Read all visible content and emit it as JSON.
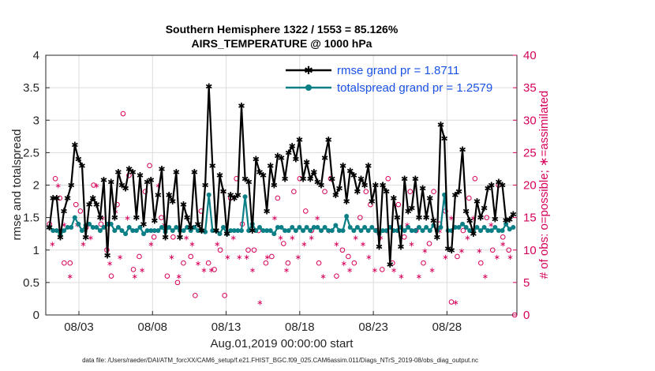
{
  "colors": {
    "rmse": "#000000",
    "spread": "#0b7f86",
    "obs": "#d6005a",
    "legend_text": "#1a52e6",
    "grid": "#dcdcdc"
  },
  "chart_data": {
    "type": "line",
    "title": "Southern Hemisphere 1322 / 1553 = 85.126%",
    "subtitle": "AIRS_TEMPERATURE @ 1000 hPa",
    "xlabel": "Aug.01,2019 00:00:00 start",
    "ylabel": "rmse and totalspread",
    "ylabel_right": "# of obs: o=possible; ∗=assimilated",
    "x_ticks": [
      "08/03",
      "08/08",
      "08/13",
      "08/18",
      "08/23",
      "08/28"
    ],
    "x_tick_days": [
      2.5,
      7.5,
      12.5,
      17.5,
      22.5,
      27.5
    ],
    "xlim": [
      0.25,
      32.25
    ],
    "ylim": [
      0,
      4
    ],
    "y_ticks": [
      "0",
      "0.5",
      "1",
      "1.5",
      "2",
      "2.5",
      "3",
      "3.5",
      "4"
    ],
    "ylim_right": [
      0,
      40
    ],
    "y_ticks_right": [
      "0",
      "5",
      "10",
      "15",
      "20",
      "25",
      "30",
      "35",
      "40"
    ],
    "grid": true,
    "legend_position": "top-right",
    "legend": [
      "rmse grand pr = 1.8711",
      "totalspread grand pr = 1.2579"
    ],
    "series": [
      {
        "name": "rmse",
        "values": [
          1.35,
          1.8,
          1.8,
          1.2,
          1.6,
          1.8,
          2.0,
          2.62,
          2.4,
          2.3,
          1.2,
          1.7,
          1.8,
          1.7,
          1.5,
          2.08,
          0.92,
          2.05,
          1.5,
          2.2,
          2.0,
          1.95,
          2.25,
          2.2,
          1.5,
          2.15,
          1.4,
          2.05,
          2.08,
          1.45,
          1.85,
          2.25,
          1.2,
          1.85,
          1.75,
          2.2,
          1.2,
          1.7,
          1.5,
          1.35,
          2.2,
          1.4,
          1.3,
          2.0,
          3.52,
          2.3,
          1.3,
          2.15,
          1.9,
          1.25,
          1.85,
          1.8,
          1.85,
          3.22,
          2.1,
          2.05,
          1.3,
          2.4,
          2.2,
          2.15,
          1.6,
          2.3,
          2.0,
          2.45,
          2.42,
          2.1,
          2.5,
          2.6,
          2.4,
          2.7,
          2.1,
          2.35,
          2.1,
          2.2,
          2.05,
          2.0,
          2.42,
          2.7,
          2.1,
          1.85,
          1.95,
          2.3,
          1.75,
          2.22,
          2.15,
          1.9,
          2.1,
          2.0,
          2.3,
          1.75,
          2.0,
          1.05,
          2.0,
          1.9,
          0.78,
          1.8,
          1.5,
          1.05,
          2.1,
          1.6,
          1.65,
          2.1,
          1.5,
          1.95,
          1.5,
          1.8,
          1.45,
          1.2,
          2.93,
          2.72,
          1.02,
          1.0,
          1.85,
          1.9,
          2.55,
          1.6,
          1.45,
          1.25,
          1.75,
          1.5,
          1.65,
          1.95,
          2.0,
          1.48,
          2.05,
          2.0,
          1.46,
          1.47,
          1.55
        ],
        "color": "#000000"
      },
      {
        "name": "totalspread",
        "values": [
          1.35,
          1.3,
          1.3,
          1.25,
          1.3,
          1.35,
          1.35,
          1.5,
          1.4,
          1.3,
          1.38,
          1.4,
          1.35,
          1.35,
          1.3,
          1.35,
          1.4,
          1.4,
          1.3,
          1.35,
          1.3,
          1.25,
          1.35,
          1.3,
          1.3,
          1.35,
          1.25,
          1.3,
          1.3,
          1.3,
          1.3,
          1.35,
          1.28,
          1.35,
          1.3,
          1.35,
          1.3,
          1.3,
          1.35,
          1.3,
          1.35,
          1.3,
          1.3,
          1.28,
          1.45,
          1.3,
          1.3,
          1.25,
          1.35,
          1.25,
          1.3,
          1.3,
          1.3,
          1.3,
          1.35,
          1.3,
          1.4,
          1.3,
          1.35,
          1.3,
          1.3,
          1.3,
          1.25,
          1.35,
          1.35,
          1.3,
          1.3,
          1.35,
          1.3,
          1.35,
          1.3,
          1.35,
          1.3,
          1.35,
          1.35,
          1.3,
          1.35,
          1.3,
          1.3,
          1.38,
          1.3,
          1.3,
          1.3,
          1.35,
          1.3,
          1.35,
          1.3,
          1.35,
          1.3,
          1.35,
          1.3,
          1.25,
          1.3,
          1.3,
          1.35,
          1.3,
          1.3,
          1.35,
          1.3,
          1.35,
          1.3,
          1.3,
          1.35,
          1.3,
          1.35,
          1.3,
          1.38,
          1.3,
          1.35,
          1.4,
          1.3,
          1.3,
          1.35,
          1.35,
          1.4,
          1.35,
          1.3,
          1.3,
          1.35,
          1.3,
          1.35,
          1.3,
          1.3,
          1.35,
          1.3,
          1.3,
          1.4,
          1.32,
          1.35
        ],
        "spikes": [
          {
            "index": 44,
            "value": 1.85
          },
          {
            "index": 54,
            "value": 1.82
          },
          {
            "index": 82,
            "value": 1.52
          },
          {
            "index": 109,
            "value": 1.85
          }
        ],
        "color": "#0b7f86"
      },
      {
        "name": "obs possible",
        "axis": "right",
        "marker": "o",
        "points": [
          [
            0.5,
            14
          ],
          [
            0.9,
            21
          ],
          [
            1.2,
            18
          ],
          [
            1.5,
            8
          ],
          [
            1.9,
            8
          ],
          [
            2.3,
            17
          ],
          [
            2.6,
            16
          ],
          [
            3.0,
            13.5
          ],
          [
            3.5,
            20
          ],
          [
            4.0,
            14
          ],
          [
            4.4,
            10
          ],
          [
            4.7,
            6
          ],
          [
            5.1,
            17
          ],
          [
            5.5,
            31
          ],
          [
            5.9,
            21.5
          ],
          [
            6.2,
            7
          ],
          [
            6.6,
            9
          ],
          [
            7.0,
            19
          ],
          [
            7.3,
            23
          ],
          [
            7.6,
            12
          ],
          [
            8.1,
            15
          ],
          [
            8.5,
            6
          ],
          [
            8.9,
            12
          ],
          [
            9.2,
            5
          ],
          [
            9.6,
            8
          ],
          [
            10.1,
            9
          ],
          [
            10.4,
            3
          ],
          [
            10.8,
            16
          ],
          [
            11.3,
            8
          ],
          [
            11.7,
            7
          ],
          [
            12.1,
            10
          ],
          [
            12.4,
            3
          ],
          [
            12.8,
            18
          ],
          [
            13.2,
            21
          ],
          [
            13.6,
            14
          ],
          [
            14.0,
            10
          ],
          [
            14.4,
            10
          ],
          [
            14.7,
            13
          ],
          [
            15.2,
            8
          ],
          [
            15.6,
            9
          ],
          [
            16.0,
            18
          ],
          [
            16.4,
            11
          ],
          [
            16.7,
            8
          ],
          [
            17.1,
            19
          ],
          [
            17.5,
            21
          ],
          [
            17.9,
            16
          ],
          [
            18.3,
            13
          ],
          [
            18.8,
            8
          ],
          [
            19.2,
            19
          ],
          [
            19.6,
            21
          ],
          [
            20.0,
            6
          ],
          [
            20.4,
            10
          ],
          [
            20.8,
            9
          ],
          [
            21.2,
            8
          ],
          [
            21.6,
            15
          ],
          [
            22.0,
            19
          ],
          [
            22.3,
            17
          ],
          [
            22.7,
            13
          ],
          [
            23.1,
            7
          ],
          [
            23.5,
            21
          ],
          [
            23.8,
            8
          ],
          [
            24.2,
            17
          ],
          [
            24.6,
            12
          ],
          [
            25.0,
            19
          ],
          [
            25.4,
            13
          ],
          [
            25.9,
            8
          ],
          [
            26.3,
            11
          ],
          [
            26.6,
            19
          ],
          [
            27.0,
            14
          ],
          [
            27.4,
            16
          ],
          [
            27.8,
            2
          ],
          [
            28.2,
            9
          ],
          [
            28.6,
            13
          ],
          [
            29.0,
            18
          ],
          [
            29.4,
            21
          ],
          [
            29.8,
            8
          ],
          [
            30.2,
            15
          ],
          [
            30.6,
            10
          ],
          [
            31.0,
            20
          ],
          [
            31.3,
            12
          ],
          [
            31.7,
            10
          ],
          [
            32.1,
            0
          ]
        ]
      },
      {
        "name": "obs assimilated",
        "axis": "right",
        "marker": "*",
        "points": [
          [
            0.7,
            11
          ],
          [
            1.1,
            20
          ],
          [
            1.5,
            14
          ],
          [
            1.9,
            6
          ],
          [
            2.4,
            14
          ],
          [
            2.8,
            11
          ],
          [
            3.3,
            12
          ],
          [
            3.7,
            20
          ],
          [
            4.1,
            15
          ],
          [
            4.6,
            8
          ],
          [
            5.0,
            16
          ],
          [
            5.3,
            9
          ],
          [
            5.8,
            15
          ],
          [
            6.3,
            6
          ],
          [
            6.8,
            7
          ],
          [
            7.4,
            11
          ],
          [
            7.9,
            20
          ],
          [
            8.3,
            14
          ],
          [
            8.8,
            9
          ],
          [
            9.3,
            6
          ],
          [
            9.8,
            12
          ],
          [
            10.2,
            11
          ],
          [
            10.6,
            8
          ],
          [
            11.0,
            7
          ],
          [
            11.5,
            7
          ],
          [
            11.9,
            11
          ],
          [
            12.3,
            19
          ],
          [
            12.6,
            9
          ],
          [
            13.0,
            12
          ],
          [
            13.4,
            9
          ],
          [
            13.9,
            9
          ],
          [
            14.3,
            7
          ],
          [
            14.8,
            2
          ],
          [
            15.3,
            9
          ],
          [
            15.8,
            15
          ],
          [
            16.2,
            12
          ],
          [
            16.6,
            7
          ],
          [
            17.0,
            12
          ],
          [
            17.4,
            9
          ],
          [
            17.8,
            11
          ],
          [
            18.3,
            12
          ],
          [
            18.7,
            15
          ],
          [
            19.1,
            6
          ],
          [
            19.5,
            13
          ],
          [
            20.0,
            11
          ],
          [
            20.5,
            8
          ],
          [
            20.9,
            7
          ],
          [
            21.3,
            12
          ],
          [
            21.8,
            11
          ],
          [
            22.2,
            9
          ],
          [
            22.6,
            7
          ],
          [
            23.0,
            12
          ],
          [
            23.4,
            13
          ],
          [
            23.9,
            7
          ],
          [
            24.4,
            6
          ],
          [
            24.8,
            14
          ],
          [
            25.1,
            11
          ],
          [
            25.6,
            6
          ],
          [
            26.0,
            10
          ],
          [
            26.5,
            7
          ],
          [
            27.0,
            13
          ],
          [
            27.4,
            9
          ],
          [
            27.8,
            15
          ],
          [
            28.1,
            2
          ],
          [
            28.5,
            10
          ],
          [
            28.9,
            12
          ],
          [
            29.3,
            15
          ],
          [
            29.7,
            10
          ],
          [
            30.1,
            6
          ],
          [
            30.5,
            14
          ],
          [
            30.9,
            9
          ],
          [
            31.3,
            11
          ],
          [
            31.8,
            9
          ]
        ]
      }
    ]
  },
  "footer": "data file: /Users/raeder/DAI/ATM_forcXX/CAM6_setup/f.e21.FHIST_BGC.f09_025.CAM6assim.011/Diags_NTrS_2019-08/obs_diag_output.nc"
}
